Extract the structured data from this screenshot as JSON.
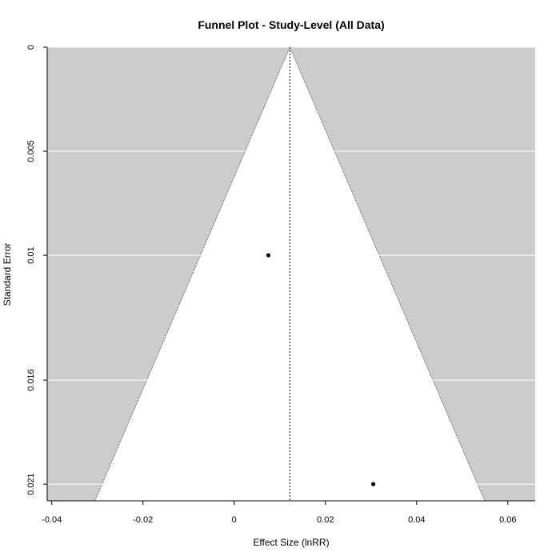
{
  "chart_data": {
    "type": "scatter",
    "title": "Funnel Plot - Study-Level (All Data)",
    "xlabel": "Effect Size (lnRR)",
    "ylabel": "Standard Error",
    "xlim": [
      -0.041,
      0.066
    ],
    "ylim": [
      0.0218,
      0
    ],
    "y_reversed": true,
    "x_ticks": [
      -0.04,
      -0.02,
      0,
      0.02,
      0.04,
      0.06
    ],
    "x_tick_labels": [
      "-0.04",
      "-0.02",
      "0",
      "0.02",
      "0.04",
      "0.06"
    ],
    "y_ticks": [
      0,
      0.005,
      0.01,
      0.016,
      0.021
    ],
    "y_tick_labels": [
      "0",
      "0.005",
      "0.01",
      "0.016",
      "0.021"
    ],
    "summary_estimate": 0.0122,
    "funnel_multiplier": 1.96,
    "points": [
      {
        "x": 0.0075,
        "y": 0.01
      },
      {
        "x": 0.0305,
        "y": 0.021
      }
    ],
    "colors": {
      "background": "#cccccc",
      "funnel": "#ffffff",
      "grid": "#ffffff",
      "point": "#000000",
      "reference_line": "#000000"
    },
    "grid": true
  }
}
